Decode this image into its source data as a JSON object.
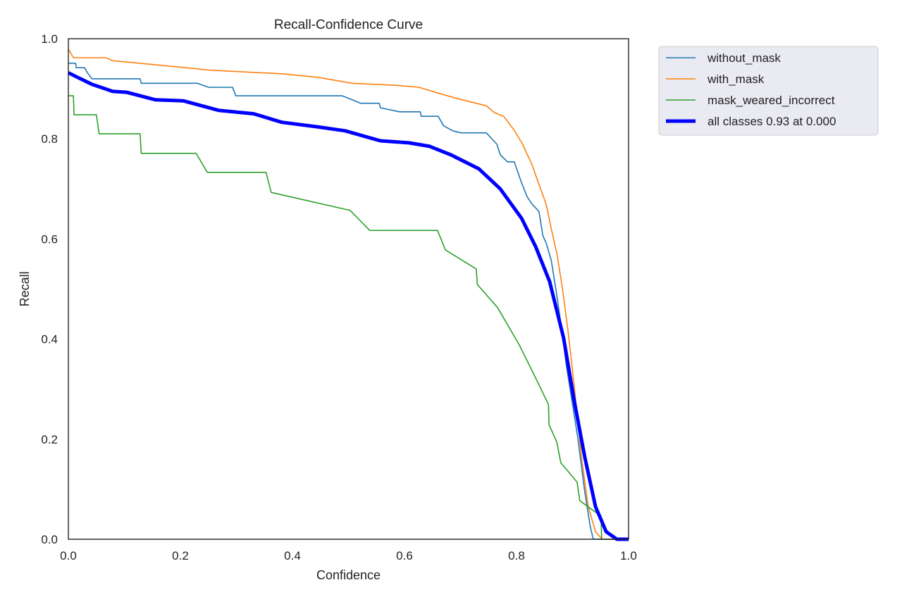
{
  "chart_data": {
    "type": "line",
    "title": "Recall-Confidence Curve",
    "xlabel": "Confidence",
    "ylabel": "Recall",
    "xlim": [
      0,
      1
    ],
    "ylim": [
      0,
      1
    ],
    "xticks": [
      "0.0",
      "0.2",
      "0.4",
      "0.6",
      "0.8",
      "1.0"
    ],
    "yticks": [
      "0.0",
      "0.2",
      "0.4",
      "0.6",
      "0.8",
      "1.0"
    ],
    "grid": false,
    "legend_placement": "outside-top-right",
    "series": [
      {
        "name": "without_mask",
        "color": "#1f77b4",
        "width": "thin",
        "points": [
          [
            0,
            0.951
          ],
          [
            0.013,
            0.951
          ],
          [
            0.014,
            0.942
          ],
          [
            0.029,
            0.942
          ],
          [
            0.034,
            0.932
          ],
          [
            0.042,
            0.92
          ],
          [
            0.128,
            0.92
          ],
          [
            0.13,
            0.911
          ],
          [
            0.23,
            0.911
          ],
          [
            0.25,
            0.903
          ],
          [
            0.293,
            0.903
          ],
          [
            0.299,
            0.886
          ],
          [
            0.489,
            0.886
          ],
          [
            0.522,
            0.871
          ],
          [
            0.555,
            0.871
          ],
          [
            0.557,
            0.862
          ],
          [
            0.591,
            0.854
          ],
          [
            0.628,
            0.854
          ],
          [
            0.63,
            0.845
          ],
          [
            0.66,
            0.845
          ],
          [
            0.67,
            0.826
          ],
          [
            0.686,
            0.816
          ],
          [
            0.701,
            0.812
          ],
          [
            0.746,
            0.812
          ],
          [
            0.765,
            0.789
          ],
          [
            0.771,
            0.768
          ],
          [
            0.784,
            0.754
          ],
          [
            0.796,
            0.754
          ],
          [
            0.809,
            0.712
          ],
          [
            0.819,
            0.684
          ],
          [
            0.828,
            0.669
          ],
          [
            0.84,
            0.655
          ],
          [
            0.847,
            0.606
          ],
          [
            0.853,
            0.592
          ],
          [
            0.862,
            0.557
          ],
          [
            0.872,
            0.487
          ],
          [
            0.881,
            0.416
          ],
          [
            0.889,
            0.346
          ],
          [
            0.899,
            0.276
          ],
          [
            0.909,
            0.205
          ],
          [
            0.922,
            0.093
          ],
          [
            0.932,
            0.023
          ],
          [
            0.937,
            0
          ],
          [
            1,
            0
          ]
        ]
      },
      {
        "name": "with_mask",
        "color": "#ff7f0e",
        "width": "thin",
        "points": [
          [
            0,
            0.979
          ],
          [
            0.009,
            0.962
          ],
          [
            0.067,
            0.962
          ],
          [
            0.079,
            0.956
          ],
          [
            0.117,
            0.952
          ],
          [
            0.192,
            0.944
          ],
          [
            0.255,
            0.937
          ],
          [
            0.381,
            0.93
          ],
          [
            0.444,
            0.923
          ],
          [
            0.507,
            0.911
          ],
          [
            0.582,
            0.907
          ],
          [
            0.626,
            0.903
          ],
          [
            0.658,
            0.892
          ],
          [
            0.696,
            0.88
          ],
          [
            0.746,
            0.866
          ],
          [
            0.761,
            0.852
          ],
          [
            0.777,
            0.845
          ],
          [
            0.796,
            0.817
          ],
          [
            0.811,
            0.789
          ],
          [
            0.828,
            0.747
          ],
          [
            0.84,
            0.709
          ],
          [
            0.853,
            0.669
          ],
          [
            0.862,
            0.62
          ],
          [
            0.872,
            0.571
          ],
          [
            0.882,
            0.501
          ],
          [
            0.892,
            0.416
          ],
          [
            0.899,
            0.346
          ],
          [
            0.907,
            0.262
          ],
          [
            0.916,
            0.163
          ],
          [
            0.928,
            0.065
          ],
          [
            0.941,
            0.015
          ],
          [
            0.953,
            0
          ],
          [
            1,
            0
          ]
        ]
      },
      {
        "name": "mask_weared_incorrect",
        "color": "#2ca02c",
        "width": "thin",
        "points": [
          [
            0,
            0.886
          ],
          [
            0.009,
            0.886
          ],
          [
            0.01,
            0.848
          ],
          [
            0.05,
            0.848
          ],
          [
            0.055,
            0.81
          ],
          [
            0.128,
            0.81
          ],
          [
            0.13,
            0.771
          ],
          [
            0.228,
            0.771
          ],
          [
            0.248,
            0.733
          ],
          [
            0.353,
            0.733
          ],
          [
            0.362,
            0.693
          ],
          [
            0.503,
            0.657
          ],
          [
            0.538,
            0.617
          ],
          [
            0.659,
            0.617
          ],
          [
            0.673,
            0.578
          ],
          [
            0.728,
            0.54
          ],
          [
            0.73,
            0.509
          ],
          [
            0.766,
            0.463
          ],
          [
            0.805,
            0.388
          ],
          [
            0.839,
            0.311
          ],
          [
            0.857,
            0.269
          ],
          [
            0.858,
            0.229
          ],
          [
            0.872,
            0.194
          ],
          [
            0.879,
            0.153
          ],
          [
            0.908,
            0.114
          ],
          [
            0.913,
            0.077
          ],
          [
            0.951,
            0.046
          ],
          [
            0.952,
            0
          ],
          [
            1,
            0
          ]
        ]
      },
      {
        "name": "all classes 0.93 at 0.000",
        "color": "#0000ff",
        "width": "thick",
        "points": [
          [
            0,
            0.932
          ],
          [
            0.016,
            0.923
          ],
          [
            0.042,
            0.909
          ],
          [
            0.079,
            0.895
          ],
          [
            0.104,
            0.893
          ],
          [
            0.155,
            0.878
          ],
          [
            0.205,
            0.876
          ],
          [
            0.268,
            0.857
          ],
          [
            0.331,
            0.85
          ],
          [
            0.381,
            0.833
          ],
          [
            0.444,
            0.824
          ],
          [
            0.494,
            0.816
          ],
          [
            0.557,
            0.796
          ],
          [
            0.608,
            0.792
          ],
          [
            0.645,
            0.785
          ],
          [
            0.683,
            0.768
          ],
          [
            0.733,
            0.74
          ],
          [
            0.771,
            0.7
          ],
          [
            0.809,
            0.641
          ],
          [
            0.834,
            0.585
          ],
          [
            0.859,
            0.515
          ],
          [
            0.884,
            0.402
          ],
          [
            0.903,
            0.276
          ],
          [
            0.922,
            0.163
          ],
          [
            0.941,
            0.065
          ],
          [
            0.96,
            0.015
          ],
          [
            0.979,
            0
          ],
          [
            1,
            0
          ]
        ]
      }
    ],
    "legend_bg": "#eaeaf2"
  }
}
